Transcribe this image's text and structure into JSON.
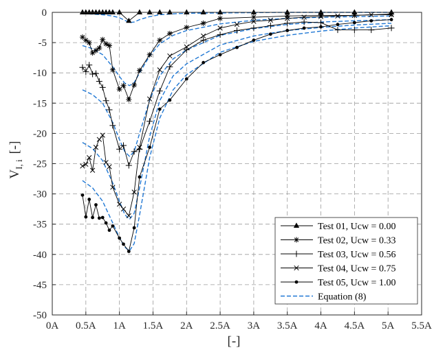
{
  "chart_data": {
    "type": "line",
    "title": "",
    "xlabel": "[-]",
    "ylabel": "V",
    "ylabel_sub": "I, i",
    "ylabel_suffix": "[-]",
    "xlim": [
      0,
      5.5
    ],
    "ylim": [
      -50,
      0
    ],
    "x_ticks": [
      0,
      0.5,
      1,
      1.5,
      2,
      2.5,
      3,
      3.5,
      4,
      4.5,
      5,
      5.5
    ],
    "x_tick_labels": [
      "0A",
      "0.5A",
      "1A",
      "1.5A",
      "2A",
      "2.5A",
      "3A",
      "3.5A",
      "4A",
      "4.5A",
      "5A",
      "5.5A"
    ],
    "y_ticks": [
      0,
      -5,
      -10,
      -15,
      -20,
      -25,
      -30,
      -35,
      -40,
      -45,
      -50
    ],
    "y_tick_labels": [
      "0",
      "-5",
      "-10",
      "-15",
      "-20",
      "-25",
      "-30",
      "-35",
      "-40",
      "-45",
      "-50"
    ],
    "grid": true,
    "legend_position": "bottom-right",
    "series": [
      {
        "name": "Test 01, Ucw = 0.00",
        "marker": "triangle",
        "color": "#000000",
        "x": [
          0.45,
          0.5,
          0.55,
          0.6,
          0.65,
          0.7,
          0.75,
          0.8,
          0.85,
          0.9,
          1.0,
          1.14,
          1.3,
          1.45,
          1.6,
          1.75,
          2.0,
          2.25,
          2.5,
          3.0,
          3.5,
          4.0,
          4.5,
          5.05
        ],
        "y": [
          0,
          0,
          0,
          0,
          0,
          0,
          0,
          0,
          0,
          0,
          0,
          -1.4,
          0,
          0,
          0,
          0,
          0,
          0,
          0,
          0,
          0,
          0,
          0,
          0
        ]
      },
      {
        "name": "Test 02, Ucw = 0.33",
        "marker": "asterisk",
        "color": "#000000",
        "x": [
          0.45,
          0.5,
          0.55,
          0.6,
          0.65,
          0.7,
          0.75,
          0.8,
          0.85,
          0.9,
          1.0,
          1.06,
          1.14,
          1.22,
          1.3,
          1.45,
          1.6,
          1.75,
          2.0,
          2.25,
          2.5,
          3.0,
          3.5,
          4.0,
          4.5,
          5.05
        ],
        "y": [
          -4.1,
          -4.6,
          -5.0,
          -6.7,
          -6.3,
          -5.9,
          -4.5,
          -5.2,
          -5.5,
          -9.5,
          -12.7,
          -12.1,
          -14.4,
          -12.0,
          -9.6,
          -7.0,
          -4.6,
          -3.5,
          -2.5,
          -1.8,
          -1.0,
          -0.8,
          -0.6,
          -0.5,
          -0.5,
          -0.3
        ]
      },
      {
        "name": "Test 03, Ucw = 0.56",
        "marker": "plus",
        "color": "#000000",
        "x": [
          0.45,
          0.5,
          0.55,
          0.6,
          0.65,
          0.7,
          0.75,
          0.8,
          0.85,
          0.9,
          1.0,
          1.06,
          1.14,
          1.22,
          1.3,
          1.45,
          1.6,
          1.75,
          2.0,
          2.25,
          2.5,
          2.75,
          3.0,
          3.25,
          3.5,
          3.75,
          4.0,
          4.25,
          4.5,
          4.75,
          5.05
        ],
        "y": [
          -9.1,
          -9.8,
          -8.7,
          -10.2,
          -10.1,
          -11.4,
          -12.4,
          -14.6,
          -16.1,
          -18.7,
          -22.6,
          -22.0,
          -25.3,
          -23.0,
          -22.6,
          -18.0,
          -13.0,
          -9.0,
          -6.2,
          -4.6,
          -3.7,
          -3.0,
          -2.6,
          -2.2,
          -1.8,
          -1.6,
          -1.7,
          -2.9,
          -2.9,
          -2.9,
          -2.6
        ]
      },
      {
        "name": "Test 04, Ucw = 0.75",
        "marker": "cross",
        "color": "#000000",
        "x": [
          0.45,
          0.5,
          0.55,
          0.6,
          0.65,
          0.7,
          0.75,
          0.8,
          0.85,
          0.9,
          1.0,
          1.06,
          1.14,
          1.22,
          1.3,
          1.45,
          1.6,
          1.75,
          2.0,
          2.25,
          2.5,
          2.75,
          3.0,
          3.25,
          3.5,
          3.75,
          4.0,
          4.25,
          4.5,
          4.75,
          5.05
        ],
        "y": [
          -25.4,
          -25.1,
          -24.0,
          -26.1,
          -22.3,
          -21.0,
          -20.3,
          -24.8,
          -25.5,
          -28.9,
          -31.7,
          -32.5,
          -33.6,
          -29.7,
          -22.3,
          -14.3,
          -9.5,
          -7.2,
          -5.7,
          -3.9,
          -2.6,
          -2.0,
          -1.5,
          -1.3,
          -1.0,
          -0.8,
          -0.7,
          -0.6,
          -0.5,
          -0.4,
          -0.4
        ]
      },
      {
        "name": "Test 05, Ucw = 1.00",
        "marker": "dot",
        "color": "#000000",
        "x": [
          0.45,
          0.5,
          0.55,
          0.6,
          0.65,
          0.7,
          0.75,
          0.8,
          0.85,
          0.9,
          1.0,
          1.06,
          1.14,
          1.22,
          1.3,
          1.45,
          1.6,
          1.75,
          2.0,
          2.25,
          2.5,
          2.75,
          3.0,
          3.25,
          3.5,
          3.75,
          4.0,
          4.25,
          4.5,
          4.75,
          5.05
        ],
        "y": [
          -30.2,
          -33.8,
          -30.9,
          -33.9,
          -31.8,
          -34.0,
          -33.9,
          -34.8,
          -36.0,
          -35.3,
          -37.3,
          -38.3,
          -39.5,
          -35.6,
          -27.2,
          -22.3,
          -16.0,
          -14.5,
          -11.0,
          -8.3,
          -7.0,
          -5.8,
          -4.6,
          -3.6,
          -3.0,
          -2.6,
          -2.4,
          -2.0,
          -1.7,
          -1.4,
          -1.2
        ]
      },
      {
        "name": "Equation (8)",
        "marker": "none",
        "dashed": true,
        "color": "#1f77d4",
        "curves": [
          {
            "x": [
              0.45,
              0.6,
              0.75,
              0.9,
              1.0,
              1.08,
              1.15,
              1.22,
              1.3,
              1.45,
              1.6,
              1.8,
              2.0,
              2.5,
              3.0,
              3.5,
              4.0,
              4.5,
              5.05
            ],
            "y": [
              -0.2,
              -0.3,
              -0.4,
              -0.6,
              -0.9,
              -1.3,
              -1.7,
              -1.6,
              -1.2,
              -0.7,
              -0.4,
              -0.25,
              -0.15,
              -0.1,
              -0.05,
              0,
              0,
              0,
              0
            ]
          },
          {
            "x": [
              0.45,
              0.6,
              0.75,
              0.9,
              1.0,
              1.08,
              1.15,
              1.22,
              1.3,
              1.45,
              1.6,
              1.8,
              2.0,
              2.5,
              3.0,
              3.5,
              4.0,
              4.5,
              5.05
            ],
            "y": [
              -5.5,
              -6.0,
              -7.0,
              -9.0,
              -10.6,
              -11.7,
              -12.1,
              -11.6,
              -10.0,
              -7.2,
              -5.2,
              -3.8,
              -3.0,
              -1.9,
              -1.3,
              -1.0,
              -0.8,
              -0.7,
              -0.6
            ]
          },
          {
            "x": [
              0.45,
              0.6,
              0.75,
              0.9,
              1.0,
              1.08,
              1.15,
              1.22,
              1.3,
              1.45,
              1.6,
              1.8,
              2.0,
              2.5,
              3.0,
              3.5,
              4.0,
              4.5,
              5.05
            ],
            "y": [
              -12.8,
              -13.6,
              -15.0,
              -18.2,
              -21.0,
              -23.0,
              -23.8,
              -23.0,
              -20.0,
              -14.5,
              -10.5,
              -7.7,
              -6.2,
              -3.8,
              -2.7,
              -2.0,
              -1.6,
              -1.4,
              -1.2
            ]
          },
          {
            "x": [
              0.45,
              0.6,
              0.75,
              0.9,
              1.0,
              1.08,
              1.15,
              1.22,
              1.3,
              1.45,
              1.6,
              1.8,
              2.0,
              2.5,
              3.0,
              3.5,
              4.0,
              4.5,
              5.05
            ],
            "y": [
              -21.5,
              -22.5,
              -24.5,
              -28.2,
              -31.2,
              -33.4,
              -34.2,
              -33.2,
              -29.0,
              -20.5,
              -14.6,
              -10.5,
              -8.5,
              -5.4,
              -3.9,
              -3.0,
              -2.5,
              -2.1,
              -1.8
            ]
          },
          {
            "x": [
              0.45,
              0.6,
              0.75,
              0.9,
              1.0,
              1.08,
              1.15,
              1.22,
              1.3,
              1.45,
              1.6,
              1.8,
              2.0,
              2.5,
              3.0,
              3.5,
              4.0,
              4.5,
              5.05
            ],
            "y": [
              -27.8,
              -29.0,
              -31.2,
              -34.8,
              -37.2,
              -38.8,
              -39.4,
              -38.2,
              -33.5,
              -24.0,
              -17.5,
              -12.8,
              -10.3,
              -6.6,
              -4.8,
              -3.8,
              -3.1,
              -2.6,
              -2.2
            ]
          }
        ]
      }
    ]
  }
}
